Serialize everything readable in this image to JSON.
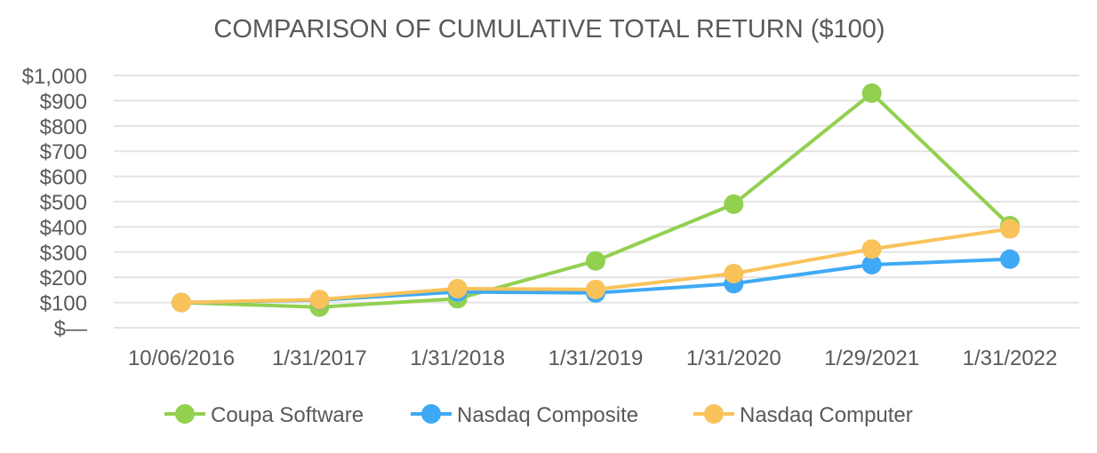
{
  "chart_data": {
    "type": "line",
    "title": "COMPARISON OF CUMULATIVE TOTAL RETURN ($100)",
    "xlabel": "",
    "ylabel": "",
    "categories": [
      "10/06/2016",
      "1/31/2017",
      "1/31/2018",
      "1/31/2019",
      "1/31/2020",
      "1/29/2021",
      "1/31/2022"
    ],
    "ylim": [
      0,
      1000
    ],
    "yticks": [
      0,
      100,
      200,
      300,
      400,
      500,
      600,
      700,
      800,
      900,
      1000
    ],
    "ytick_labels": [
      "$—",
      "$100",
      "$200",
      "$300",
      "$400",
      "$500",
      "$600",
      "$700",
      "$800",
      "$900",
      "$1,000"
    ],
    "grid": true,
    "legend_position": "bottom",
    "series": [
      {
        "name": "Coupa Software",
        "color": "#92d050",
        "values": [
          100,
          82,
          115,
          265,
          490,
          930,
          405
        ]
      },
      {
        "name": "Nasdaq Composite",
        "color": "#3fa9f5",
        "values": [
          100,
          110,
          142,
          138,
          175,
          250,
          272
        ]
      },
      {
        "name": "Nasdaq Computer",
        "color": "#f9c25a",
        "values": [
          100,
          112,
          155,
          152,
          215,
          312,
          392
        ]
      }
    ]
  }
}
